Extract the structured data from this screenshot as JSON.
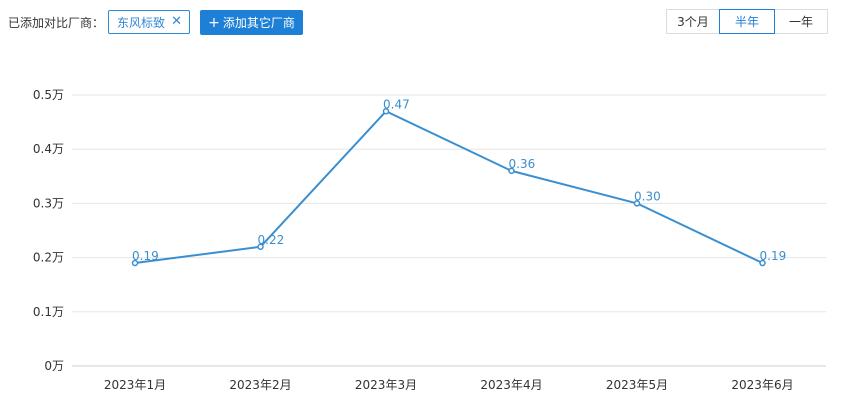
{
  "toolbar": {
    "label": "已添加对比厂商：",
    "selected_brand": "东风标致",
    "remove_icon": "close-icon",
    "add_button_label": "添加其它厂商",
    "add_icon": "plus-icon",
    "time_ranges": [
      "3个月",
      "半年",
      "一年"
    ],
    "active_range": "半年"
  },
  "colors": {
    "accent": "#1d7fd6",
    "line": "#3a8fd0",
    "grid": "#e6e6e6"
  },
  "chart_data": {
    "type": "line",
    "categories": [
      "2023年1月",
      "2023年2月",
      "2023年3月",
      "2023年4月",
      "2023年5月",
      "2023年6月"
    ],
    "series": [
      {
        "values": [
          0.19,
          0.22,
          0.47,
          0.36,
          0.3,
          0.19
        ]
      }
    ],
    "data_labels": [
      "0.19",
      "0.22",
      "0.47",
      "0.36",
      "0.30",
      "0.19"
    ],
    "y_ticks": [
      0,
      0.1,
      0.2,
      0.3,
      0.4,
      0.5
    ],
    "y_tick_labels": [
      "0万",
      "0.1万",
      "0.2万",
      "0.3万",
      "0.4万",
      "0.5万"
    ],
    "ylim": [
      0,
      0.5
    ],
    "grid": true,
    "title": "",
    "xlabel": "",
    "ylabel": ""
  }
}
